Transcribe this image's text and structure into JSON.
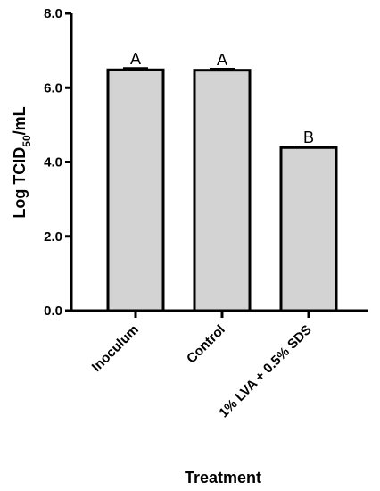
{
  "chart_data": {
    "type": "bar",
    "categories": [
      "Inoculum",
      "Control",
      "1% LVA + 0.5% SDS"
    ],
    "values": [
      6.48,
      6.47,
      4.39
    ],
    "errors": [
      0.05,
      0.04,
      0.03
    ],
    "significance_labels": [
      "A",
      "A",
      "B"
    ],
    "xlabel": "Treatment",
    "ylabel_prefix": "Log TCID",
    "ylabel_subscript": "50",
    "ylabel_suffix": "/mL",
    "ylim": [
      0,
      8
    ],
    "yticks": [
      0,
      2,
      4,
      6,
      8
    ],
    "ytick_labels": [
      "0.0",
      "2.0",
      "4.0",
      "6.0",
      "8.0"
    ],
    "grid": false,
    "legend": "none",
    "colors": {
      "bar_fill": "#d3d3d3",
      "bar_stroke": "#000000",
      "axis": "#000000"
    }
  }
}
